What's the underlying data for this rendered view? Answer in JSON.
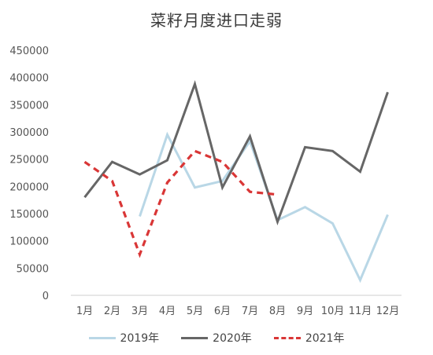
{
  "chart_data": {
    "type": "line",
    "title": "菜籽月度进口走弱",
    "categories": [
      "1月",
      "2月",
      "3月",
      "4月",
      "5月",
      "6月",
      "7月",
      "8月",
      "9月",
      "10月",
      "11月",
      "12月"
    ],
    "ylim": [
      0,
      450000
    ],
    "yticks": [
      "0",
      "50000",
      "100000",
      "150000",
      "200000",
      "250000",
      "300000",
      "350000",
      "400000",
      "450000"
    ],
    "grid": false,
    "legend_position": "bottom",
    "series": [
      {
        "name": "2019年",
        "color": "#b9d7e6",
        "dash": "none",
        "values": [
          null,
          null,
          145000,
          295000,
          198000,
          210000,
          283000,
          138000,
          162000,
          132000,
          28000,
          148000
        ]
      },
      {
        "name": "2020年",
        "color": "#666666",
        "dash": "none",
        "values": [
          180000,
          245000,
          222000,
          248000,
          388000,
          198000,
          292000,
          135000,
          272000,
          265000,
          227000,
          373000
        ]
      },
      {
        "name": "2021年",
        "color": "#d93636",
        "dash": "8,6",
        "values": [
          245000,
          210000,
          75000,
          207000,
          265000,
          245000,
          190000,
          185000,
          null,
          null,
          null,
          null
        ]
      }
    ]
  }
}
